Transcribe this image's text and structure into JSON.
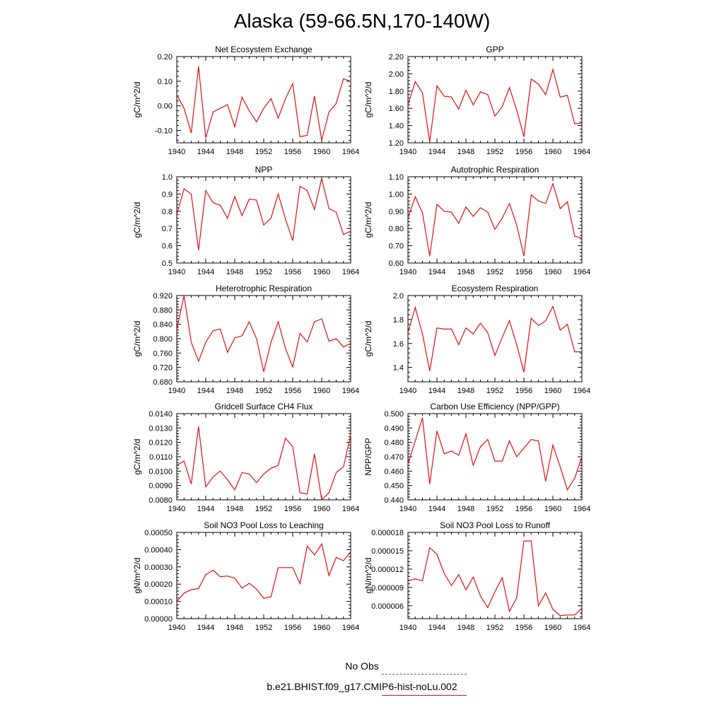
{
  "title": "Alaska (59-66.5N,170-140W)",
  "legend": [
    {
      "label": "No Obs",
      "color": "#4a5ac8",
      "style": "dashed"
    },
    {
      "label": "b.e21.BHIST.f09_g17.CMIP6-hist-noLu.002",
      "color": "#e01010",
      "style": "solid"
    }
  ],
  "chart_data": [
    {
      "type": "line",
      "title": "Net Ecosystem Exchange",
      "xlabel": "",
      "ylabel": "gC/m^2/d",
      "xlim": [
        1940,
        1964
      ],
      "ylim": [
        -0.15,
        0.2
      ],
      "yticks": [
        "-0.10",
        "0.00",
        "0.10",
        "0.20"
      ],
      "ytick_values": [
        -0.1,
        0.0,
        0.1,
        0.2
      ],
      "xticks": [
        "1940",
        "1944",
        "1948",
        "1952",
        "1956",
        "1960",
        "1964"
      ],
      "line_color": "#e01010",
      "x": [
        1940,
        1941,
        1942,
        1943,
        1944,
        1945,
        1946,
        1947,
        1948,
        1949,
        1950,
        1951,
        1952,
        1953,
        1954,
        1955,
        1956,
        1957,
        1958,
        1959,
        1960,
        1961,
        1962,
        1963,
        1964
      ],
      "series": [
        {
          "values": [
            0.045,
            -0.01,
            -0.11,
            0.16,
            -0.13,
            -0.025,
            -0.01,
            0.005,
            -0.085,
            0.035,
            -0.02,
            -0.065,
            -0.01,
            0.03,
            -0.05,
            0.03,
            0.09,
            -0.125,
            -0.12,
            0.04,
            -0.14,
            -0.025,
            0.01,
            0.11,
            0.1
          ]
        }
      ]
    },
    {
      "type": "line",
      "title": "GPP",
      "xlabel": "",
      "ylabel": "gC/m^2/d",
      "xlim": [
        1940,
        1964
      ],
      "ylim": [
        1.2,
        2.2
      ],
      "yticks": [
        "1.20",
        "1.40",
        "1.60",
        "1.80",
        "2.00",
        "2.20"
      ],
      "ytick_values": [
        1.2,
        1.4,
        1.6,
        1.8,
        2.0,
        2.2
      ],
      "xticks": [
        "1940",
        "1944",
        "1948",
        "1952",
        "1956",
        "1960",
        "1964"
      ],
      "line_color": "#e01010",
      "x": [
        1940,
        1941,
        1942,
        1943,
        1944,
        1945,
        1946,
        1947,
        1948,
        1949,
        1950,
        1951,
        1952,
        1953,
        1954,
        1955,
        1956,
        1957,
        1958,
        1959,
        1960,
        1961,
        1962,
        1963,
        1964
      ],
      "series": [
        {
          "values": [
            1.64,
            1.91,
            1.78,
            1.21,
            1.86,
            1.74,
            1.73,
            1.59,
            1.81,
            1.64,
            1.79,
            1.76,
            1.51,
            1.62,
            1.84,
            1.58,
            1.27,
            1.94,
            1.88,
            1.76,
            2.05,
            1.73,
            1.75,
            1.42,
            1.43
          ]
        }
      ]
    },
    {
      "type": "line",
      "title": "NPP",
      "xlabel": "",
      "ylabel": "gC/m^2/d",
      "xlim": [
        1940,
        1964
      ],
      "ylim": [
        0.5,
        1.0
      ],
      "yticks": [
        "0.5",
        "0.6",
        "0.7",
        "0.8",
        "0.9",
        "1.0"
      ],
      "ytick_values": [
        0.5,
        0.6,
        0.7,
        0.8,
        0.9,
        1.0
      ],
      "xticks": [
        "1940",
        "1944",
        "1948",
        "1952",
        "1956",
        "1960",
        "1964"
      ],
      "line_color": "#e01010",
      "x": [
        1940,
        1941,
        1942,
        1943,
        1944,
        1945,
        1946,
        1947,
        1948,
        1949,
        1950,
        1951,
        1952,
        1953,
        1954,
        1955,
        1956,
        1957,
        1958,
        1959,
        1960,
        1961,
        1962,
        1963,
        1964
      ],
      "series": [
        {
          "values": [
            0.78,
            0.93,
            0.9,
            0.575,
            0.92,
            0.85,
            0.835,
            0.76,
            0.885,
            0.775,
            0.87,
            0.865,
            0.72,
            0.76,
            0.9,
            0.755,
            0.63,
            0.945,
            0.92,
            0.81,
            0.99,
            0.815,
            0.795,
            0.665,
            0.685
          ]
        }
      ]
    },
    {
      "type": "line",
      "title": "Autotrophic Respiration",
      "xlabel": "",
      "ylabel": "gC/m^2/d",
      "xlim": [
        1940,
        1964
      ],
      "ylim": [
        0.6,
        1.1
      ],
      "yticks": [
        "0.60",
        "0.70",
        "0.80",
        "0.90",
        "1.00",
        "1.10"
      ],
      "ytick_values": [
        0.6,
        0.7,
        0.8,
        0.9,
        1.0,
        1.1
      ],
      "xticks": [
        "1940",
        "1944",
        "1948",
        "1952",
        "1956",
        "1960",
        "1964"
      ],
      "line_color": "#e01010",
      "x": [
        1940,
        1941,
        1942,
        1943,
        1944,
        1945,
        1946,
        1947,
        1948,
        1949,
        1950,
        1951,
        1952,
        1953,
        1954,
        1955,
        1956,
        1957,
        1958,
        1959,
        1960,
        1961,
        1962,
        1963,
        1964
      ],
      "series": [
        {
          "values": [
            0.86,
            0.985,
            0.89,
            0.64,
            0.94,
            0.9,
            0.895,
            0.83,
            0.925,
            0.87,
            0.92,
            0.895,
            0.795,
            0.86,
            0.945,
            0.82,
            0.64,
            0.995,
            0.96,
            0.945,
            1.06,
            0.915,
            0.955,
            0.755,
            0.745
          ]
        }
      ]
    },
    {
      "type": "line",
      "title": "Heterotrophic Respiration",
      "xlabel": "",
      "ylabel": "gC/m^2/d",
      "xlim": [
        1940,
        1964
      ],
      "ylim": [
        0.68,
        0.92
      ],
      "yticks": [
        "0.680",
        "0.720",
        "0.760",
        "0.800",
        "0.840",
        "0.880",
        "0.920"
      ],
      "ytick_values": [
        0.68,
        0.72,
        0.76,
        0.8,
        0.84,
        0.88,
        0.92
      ],
      "xticks": [
        "1940",
        "1944",
        "1948",
        "1952",
        "1956",
        "1960",
        "1964"
      ],
      "line_color": "#e01010",
      "x": [
        1940,
        1941,
        1942,
        1943,
        1944,
        1945,
        1946,
        1947,
        1948,
        1949,
        1950,
        1951,
        1952,
        1953,
        1954,
        1955,
        1956,
        1957,
        1958,
        1959,
        1960,
        1961,
        1962,
        1963,
        1964
      ],
      "series": [
        {
          "values": [
            0.825,
            0.92,
            0.79,
            0.737,
            0.79,
            0.822,
            0.827,
            0.762,
            0.802,
            0.808,
            0.847,
            0.8,
            0.708,
            0.79,
            0.847,
            0.773,
            0.721,
            0.815,
            0.791,
            0.847,
            0.855,
            0.793,
            0.8,
            0.777,
            0.787
          ]
        }
      ]
    },
    {
      "type": "line",
      "title": "Ecosystem Respiration",
      "xlabel": "",
      "ylabel": "gC/m^2/d",
      "xlim": [
        1940,
        1964
      ],
      "ylim": [
        1.28,
        2.0
      ],
      "yticks": [
        "1.4",
        "1.6",
        "1.8",
        "2.0"
      ],
      "ytick_values": [
        1.4,
        1.6,
        1.8,
        2.0
      ],
      "xticks": [
        "1940",
        "1944",
        "1948",
        "1952",
        "1956",
        "1960",
        "1964"
      ],
      "line_color": "#e01010",
      "x": [
        1940,
        1941,
        1942,
        1943,
        1944,
        1945,
        1946,
        1947,
        1948,
        1949,
        1950,
        1951,
        1952,
        1953,
        1954,
        1955,
        1956,
        1957,
        1958,
        1959,
        1960,
        1961,
        1962,
        1963,
        1964
      ],
      "series": [
        {
          "values": [
            1.69,
            1.9,
            1.68,
            1.37,
            1.73,
            1.72,
            1.72,
            1.59,
            1.73,
            1.68,
            1.77,
            1.69,
            1.5,
            1.65,
            1.79,
            1.59,
            1.36,
            1.81,
            1.75,
            1.79,
            1.91,
            1.71,
            1.76,
            1.53,
            1.53
          ]
        }
      ]
    },
    {
      "type": "line",
      "title": "Gridcell Surface CH4 Flux",
      "xlabel": "",
      "ylabel": "gC/m^2/d",
      "xlim": [
        1940,
        1964
      ],
      "ylim": [
        0.008,
        0.014
      ],
      "yticks": [
        "0.0080",
        "0.0090",
        "0.0100",
        "0.0110",
        "0.0120",
        "0.0130",
        "0.0140"
      ],
      "ytick_values": [
        0.008,
        0.009,
        0.01,
        0.011,
        0.012,
        0.013,
        0.014
      ],
      "xticks": [
        "1940",
        "1944",
        "1948",
        "1952",
        "1956",
        "1960",
        "1964"
      ],
      "line_color": "#e01010",
      "x": [
        1940,
        1941,
        1942,
        1943,
        1944,
        1945,
        1946,
        1947,
        1948,
        1949,
        1950,
        1951,
        1952,
        1953,
        1954,
        1955,
        1956,
        1957,
        1958,
        1959,
        1960,
        1961,
        1962,
        1963,
        1964
      ],
      "series": [
        {
          "values": [
            0.0104,
            0.0107,
            0.0091,
            0.0131,
            0.0089,
            0.0096,
            0.01,
            0.0094,
            0.0087,
            0.0099,
            0.0098,
            0.0092,
            0.0098,
            0.0102,
            0.0104,
            0.0123,
            0.0117,
            0.0085,
            0.0084,
            0.0112,
            0.008,
            0.0085,
            0.0099,
            0.0103,
            0.0125
          ]
        }
      ]
    },
    {
      "type": "line",
      "title": "Carbon Use Efficiency (NPP/GPP)",
      "xlabel": "",
      "ylabel": "NPP/GPP",
      "xlim": [
        1940,
        1964
      ],
      "ylim": [
        0.44,
        0.5
      ],
      "yticks": [
        "0.440",
        "0.450",
        "0.460",
        "0.470",
        "0.480",
        "0.490",
        "0.500"
      ],
      "ytick_values": [
        0.44,
        0.45,
        0.46,
        0.47,
        0.48,
        0.49,
        0.5
      ],
      "xticks": [
        "1940",
        "1944",
        "1948",
        "1952",
        "1956",
        "1960",
        "1964"
      ],
      "line_color": "#e01010",
      "x": [
        1940,
        1941,
        1942,
        1943,
        1944,
        1945,
        1946,
        1947,
        1948,
        1949,
        1950,
        1951,
        1952,
        1953,
        1954,
        1955,
        1956,
        1957,
        1958,
        1959,
        1960,
        1961,
        1962,
        1963,
        1964
      ],
      "series": [
        {
          "values": [
            0.465,
            0.481,
            0.497,
            0.451,
            0.488,
            0.472,
            0.474,
            0.471,
            0.486,
            0.464,
            0.477,
            0.482,
            0.467,
            0.467,
            0.481,
            0.47,
            0.476,
            0.482,
            0.481,
            0.453,
            0.478,
            0.463,
            0.447,
            0.455,
            0.47
          ]
        }
      ]
    },
    {
      "type": "line",
      "title": "Soil NO3 Pool Loss to Leaching",
      "xlabel": "",
      "ylabel": "gN/m^2/d",
      "xlim": [
        1940,
        1964
      ],
      "ylim": [
        0,
        0.0005
      ],
      "yticks": [
        "0.00000",
        "0.00010",
        "0.00020",
        "0.00030",
        "0.00040",
        "0.00050"
      ],
      "ytick_values": [
        0,
        0.0001,
        0.0002,
        0.0003,
        0.0004,
        0.0005
      ],
      "xticks": [
        "1940",
        "1944",
        "1948",
        "1952",
        "1956",
        "1960",
        "1964"
      ],
      "line_color": "#e01010",
      "x": [
        1940,
        1941,
        1942,
        1943,
        1944,
        1945,
        1946,
        1947,
        1948,
        1949,
        1950,
        1951,
        1952,
        1953,
        1954,
        1955,
        1956,
        1957,
        1958,
        1959,
        1960,
        1961,
        1962,
        1963,
        1964
      ],
      "series": [
        {
          "values": [
            0.0001,
            0.000148,
            0.000168,
            0.000175,
            0.000255,
            0.000281,
            0.000243,
            0.000247,
            0.000235,
            0.000177,
            0.000205,
            0.000171,
            0.000118,
            0.000127,
            0.000296,
            0.000296,
            0.000296,
            0.000203,
            0.000421,
            0.000369,
            0.000433,
            0.00025,
            0.000355,
            0.000336,
            0.000387
          ]
        }
      ]
    },
    {
      "type": "line",
      "title": "Soil NO3 Pool Loss to Runoff",
      "xlabel": "",
      "ylabel": "gN/m^2/d",
      "xlim": [
        1940,
        1964
      ],
      "ylim": [
        3.9e-06,
        1.8e-05
      ],
      "yticks": [
        "0.000006",
        "0.000009",
        "0.000012",
        "0.000015",
        "0.000018"
      ],
      "ytick_values": [
        6e-06,
        9e-06,
        1.2e-05,
        1.5e-05,
        1.8e-05
      ],
      "xticks": [
        "1940",
        "1944",
        "1948",
        "1952",
        "1956",
        "1960",
        "1964"
      ],
      "line_color": "#e01010",
      "x": [
        1940,
        1941,
        1942,
        1943,
        1944,
        1945,
        1946,
        1947,
        1948,
        1949,
        1950,
        1951,
        1952,
        1953,
        1954,
        1955,
        1956,
        1957,
        1958,
        1959,
        1960,
        1961,
        1962,
        1963,
        1964
      ],
      "series": [
        {
          "values": [
            1.01e-05,
            1.04e-05,
            1.01e-05,
            1.55e-05,
            1.44e-05,
            1.13e-05,
            9.3e-06,
            1.11e-05,
            8.6e-06,
            1.07e-05,
            7.6e-06,
            5.7e-06,
            8.3e-06,
            1.06e-05,
            5.1e-06,
            7.3e-06,
            1.66e-05,
            1.66e-05,
            6e-06,
            8.1e-06,
            5.4e-06,
            4.4e-06,
            4.5e-06,
            4.5e-06,
            5.6e-06
          ]
        }
      ]
    }
  ]
}
